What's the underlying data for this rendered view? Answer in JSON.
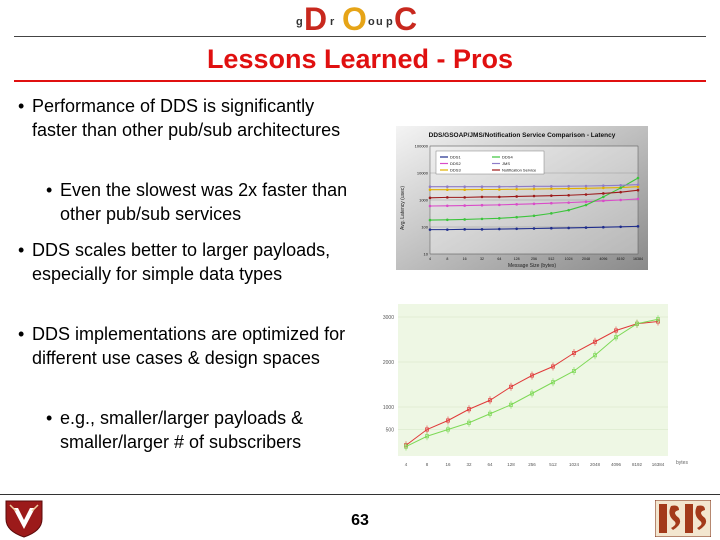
{
  "header": {
    "logo": {
      "letters": [
        "D",
        "O",
        "C"
      ],
      "small_letters": [
        "g",
        "r",
        "o",
        "u",
        "p"
      ]
    },
    "title": "Lessons Learned - Pros"
  },
  "bullets": [
    {
      "text": "Performance of DDS is significantly faster than other pub/sub architectures",
      "level": 1
    },
    {
      "text": "Even the slowest was 2x faster than other pub/sub services",
      "level": 2
    },
    {
      "text": "DDS scales better to larger payloads, especially for simple data types",
      "level": 1
    },
    {
      "text": "DDS implementations are optimized for different use cases & design spaces",
      "level": 1
    },
    {
      "text": "e.g., smaller/larger payloads & smaller/larger # of subscribers",
      "level": 2
    }
  ],
  "bullet_glyph": "•",
  "page_number": "63",
  "colors": {
    "title": "#e01010",
    "rule": "#e01010"
  },
  "chart_data": [
    {
      "type": "line",
      "title": "DDS/GSOAP/JMS/Notification Service Comparison - Latency",
      "xlabel": "Message Size (bytes)",
      "ylabel": "Avg. Latency (usec)",
      "yscale": "log",
      "ylim": [
        10,
        100000
      ],
      "yticks": [
        "10",
        "100",
        "1000",
        "10000",
        "100000"
      ],
      "categories": [
        "4",
        "8",
        "16",
        "32",
        "64",
        "128",
        "256",
        "512",
        "1024",
        "2048",
        "4096",
        "8192",
        "16384"
      ],
      "legend": [
        "DDS1",
        "DDS2",
        "DDS3",
        "DDS4",
        "JMS",
        "Notification Service"
      ],
      "legend_position": "top-left",
      "series": [
        {
          "name": "DDS1",
          "color": "#1f2d8c",
          "values": [
            80,
            80,
            82,
            82,
            84,
            86,
            88,
            90,
            92,
            95,
            98,
            102,
            106
          ]
        },
        {
          "name": "DDS2",
          "color": "#d94cc8",
          "values": [
            600,
            610,
            620,
            640,
            660,
            690,
            720,
            760,
            800,
            860,
            930,
            1000,
            1100
          ]
        },
        {
          "name": "DDS3",
          "color": "#e0b000",
          "values": [
            2400,
            2400,
            2400,
            2450,
            2450,
            2500,
            2550,
            2600,
            2650,
            2700,
            2800,
            2900,
            3100
          ]
        },
        {
          "name": "DDS4",
          "color": "#3cc43c",
          "values": [
            180,
            185,
            190,
            200,
            210,
            230,
            260,
            320,
            420,
            650,
            1300,
            2800,
            6500
          ]
        },
        {
          "name": "JMS",
          "color": "#8e7cc8",
          "values": [
            3100,
            3100,
            3100,
            3100,
            3100,
            3150,
            3200,
            3200,
            3250,
            3300,
            3400,
            3500,
            3700
          ]
        },
        {
          "name": "Notification Service",
          "color": "#9c1a1a",
          "values": [
            1200,
            1250,
            1250,
            1300,
            1300,
            1350,
            1400,
            1450,
            1500,
            1600,
            1750,
            1950,
            2300
          ]
        }
      ]
    },
    {
      "type": "line",
      "title": "",
      "xlabel": "",
      "ylabel": "",
      "x_unit_label": "bytes",
      "ylim": [
        0,
        3200
      ],
      "yticks": [
        "500",
        "1000",
        "2000",
        "3000"
      ],
      "categories": [
        "4",
        "8",
        "16",
        "32",
        "64",
        "128",
        "256",
        "512",
        "1024",
        "2048",
        "4096",
        "8192",
        "16384"
      ],
      "series": [
        {
          "name": "",
          "color": "#e03a3a",
          "values": [
            150,
            500,
            700,
            950,
            1150,
            1450,
            1700,
            1900,
            2200,
            2450,
            2700,
            2850,
            2900
          ]
        },
        {
          "name": "",
          "color": "#7ed957",
          "values": [
            120,
            350,
            500,
            650,
            850,
            1050,
            1300,
            1550,
            1800,
            2150,
            2550,
            2850,
            2950
          ]
        }
      ]
    }
  ]
}
